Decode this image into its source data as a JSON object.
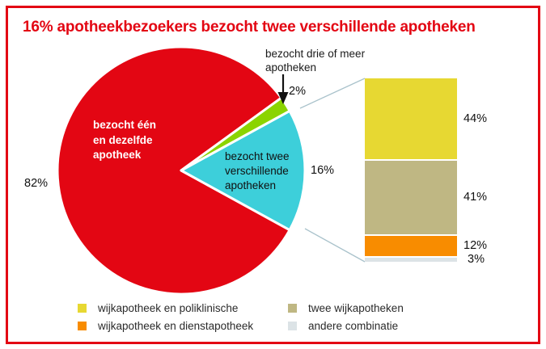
{
  "title": "16% apotheekbezoekers bezocht twee verschillende apotheken",
  "frame": {
    "border_color": "#e30613",
    "background": "#ffffff",
    "title_color": "#e30613"
  },
  "chart_data": {
    "type": "pie",
    "title": "16% apotheekbezoekers bezocht twee verschillende apotheken",
    "unit": "%",
    "legend_position": "bottom",
    "slices": [
      {
        "name": "bezocht één en dezelfde apotheek",
        "label": "bezocht één\nen dezelfde\napotheek",
        "value": 82,
        "pct": "82%",
        "color": "#e30613"
      },
      {
        "name": "bezocht twee verschillende apotheken",
        "label": "bezocht twee\nverschillende\napotheken",
        "value": 16,
        "pct": "16%",
        "color": "#3dcfda"
      },
      {
        "name": "bezocht drie of meer apotheken",
        "label": "bezocht drie of meer\napotheken",
        "value": 2,
        "pct": "2%",
        "color": "#8bd400"
      }
    ],
    "breakdown": {
      "of_slice": "bezocht twee verschillende apotheken",
      "type": "stacked-bar",
      "segments": [
        {
          "label": "wijkapotheek en poliklinische",
          "value": 44,
          "pct": "44%",
          "color": "#e7d832"
        },
        {
          "label": "twee wijkapotheken",
          "value": 41,
          "pct": "41%",
          "color": "#bfb783"
        },
        {
          "label": "wijkapotheek en dienstapotheek",
          "value": 12,
          "pct": "12%",
          "color": "#f88c00"
        },
        {
          "label": "andere combinatie",
          "value": 3,
          "pct": "3%",
          "color": "#dce3e6"
        }
      ]
    },
    "legend": {
      "items": [
        {
          "label": "wijkapotheek en poliklinische",
          "color": "#e7d832"
        },
        {
          "label": "wijkapotheek en dienstapotheek",
          "color": "#f88c00"
        },
        {
          "label": "twee wijkapotheken",
          "color": "#bfb783"
        },
        {
          "label": "andere combinatie",
          "color": "#dce3e6"
        }
      ]
    },
    "connector_color": "#a9c2cb",
    "arrow_color": "#111111"
  }
}
